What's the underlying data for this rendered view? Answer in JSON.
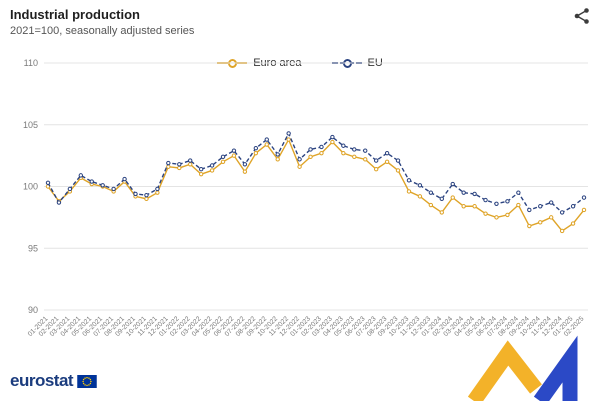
{
  "header": {
    "title": "Industrial production",
    "subtitle": "2021=100, seasonally adjusted series"
  },
  "footer": {
    "logo_text": "eurostat"
  },
  "colors": {
    "euro_area": "#DFA428",
    "eu": "#2B4380",
    "grid": "#E4E4E4",
    "axis_text": "#7A7A7A",
    "flag_blue": "#003399",
    "flag_stars": "#FFCC00"
  },
  "chart_data": {
    "type": "line",
    "title": "Industrial production",
    "subtitle": "2021=100, seasonally adjusted series",
    "x": [
      "01-2021",
      "02-2021",
      "03-2021",
      "04-2021",
      "05-2021",
      "06-2021",
      "07-2021",
      "08-2021",
      "09-2021",
      "10-2021",
      "11-2021",
      "12-2021",
      "01-2022",
      "02-2022",
      "03-2022",
      "04-2022",
      "05-2022",
      "06-2022",
      "07-2022",
      "08-2022",
      "09-2022",
      "10-2022",
      "11-2022",
      "12-2022",
      "01-2023",
      "02-2023",
      "03-2023",
      "04-2023",
      "05-2023",
      "06-2023",
      "07-2023",
      "08-2023",
      "09-2023",
      "10-2023",
      "11-2023",
      "12-2023",
      "01-2024",
      "02-2024",
      "03-2024",
      "04-2024",
      "05-2024",
      "06-2024",
      "07-2024",
      "08-2024",
      "09-2024",
      "10-2024",
      "11-2024",
      "12-2024",
      "01-2025",
      "02-2025"
    ],
    "series": [
      {
        "name": "Euro area",
        "color": "#DFA428",
        "style": "solid",
        "values": [
          100.0,
          98.8,
          99.6,
          100.7,
          100.2,
          100.0,
          99.6,
          100.4,
          99.2,
          99.0,
          99.5,
          101.6,
          101.5,
          101.8,
          101.0,
          101.3,
          102.0,
          102.5,
          101.2,
          102.7,
          103.4,
          102.2,
          103.8,
          101.6,
          102.4,
          102.7,
          103.6,
          102.7,
          102.4,
          102.2,
          101.4,
          102.0,
          101.3,
          99.6,
          99.2,
          98.5,
          97.9,
          99.1,
          98.4,
          98.4,
          97.8,
          97.5,
          97.7,
          98.5,
          96.8,
          97.1,
          97.5,
          96.4,
          97.0,
          98.1
        ]
      },
      {
        "name": "EU",
        "color": "#2B4380",
        "style": "dashed",
        "values": [
          100.3,
          98.7,
          99.8,
          100.9,
          100.4,
          100.1,
          99.8,
          100.6,
          99.4,
          99.3,
          99.8,
          101.9,
          101.8,
          102.1,
          101.4,
          101.7,
          102.4,
          102.9,
          101.8,
          103.1,
          103.8,
          102.6,
          104.3,
          102.2,
          103.0,
          103.2,
          104.0,
          103.3,
          103.0,
          102.9,
          102.1,
          102.7,
          102.1,
          100.5,
          100.1,
          99.5,
          99.0,
          100.2,
          99.5,
          99.4,
          98.9,
          98.6,
          98.8,
          99.5,
          98.1,
          98.4,
          98.7,
          97.9,
          98.4,
          99.1
        ]
      }
    ],
    "ylim": [
      90,
      110
    ],
    "yticks": [
      90,
      95,
      100,
      105,
      110
    ],
    "grid": true,
    "legend_position": "top-center"
  }
}
